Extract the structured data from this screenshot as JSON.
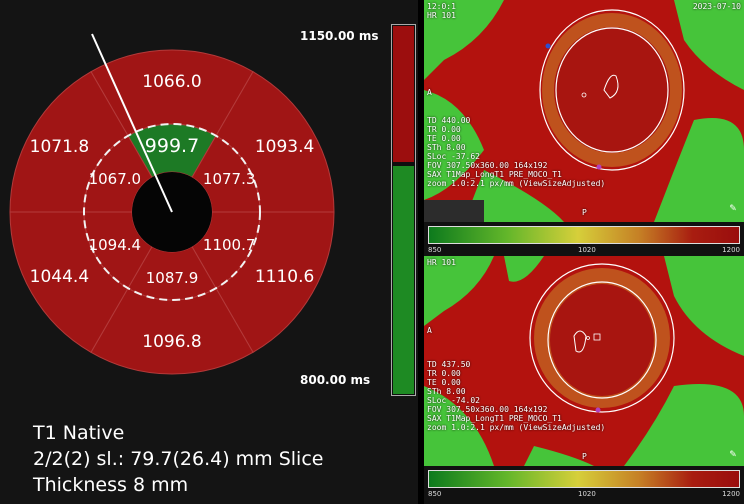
{
  "bullseye": {
    "outer_ring": [
      {
        "label": "1066.0",
        "color": "#a01515"
      },
      {
        "label": "1093.4",
        "color": "#a01515"
      },
      {
        "label": "1110.6",
        "color": "#a01515"
      },
      {
        "label": "1096.8",
        "color": "#a01515"
      },
      {
        "label": "1044.4",
        "color": "#a01515"
      },
      {
        "label": "1071.8",
        "color": "#a01515"
      }
    ],
    "inner_ring": [
      {
        "label": "999.7",
        "color": "#1d7a25"
      },
      {
        "label": "1077.3",
        "color": "#a01515"
      },
      {
        "label": "1100.7",
        "color": "#a01515"
      },
      {
        "label": "1087.9",
        "color": "#a01515"
      },
      {
        "label": "1094.4",
        "color": "#a01515"
      },
      {
        "label": "1067.0",
        "color": "#a01515"
      }
    ]
  },
  "colorbar": {
    "max_label": "1150.00 ms",
    "min_label": "800.00 ms",
    "top_color": "#9c0e0e",
    "bottom_color": "#1e8a23"
  },
  "caption": {
    "line1": "T1 Native",
    "line2": "2/2(2) sl.: 79.7(26.4) mm Slice",
    "line3": "Thickness 8 mm"
  },
  "panel_top": {
    "corner_tl_1": "12:0:1",
    "corner_tl_2": "HR 101",
    "corner_tr": "2023-07-10",
    "side_label": "A",
    "info": [
      "TD 440.00",
      "TR 0.00",
      "TE 0.00",
      "STh 8.00",
      "SLoc -37.62",
      "FOV 307.50x360.00 164x192",
      "SAX T1Map_LongT1 PRE_MOCO_T1",
      "zoom 1.0:2.1 px/mm (ViewSizeAdjusted)"
    ],
    "bottom_marker": "P"
  },
  "panel_bottom": {
    "corner_tl": "HR 101",
    "side_label": "A",
    "info": [
      "TD 437.50",
      "TR 0.00",
      "TE 0.00",
      "STh 8.00",
      "SLoc -74.02",
      "FOV 307.50x360.00 164x192",
      "SAX T1Map_LongT1 PRE_MOCO_T1",
      "zoom 1.0:2.1 px/mm (ViewSizeAdjusted)"
    ],
    "bottom_marker": "P"
  },
  "legend_top": {
    "ticks": [
      "850",
      "1020",
      "1200"
    ]
  },
  "legend_bottom": {
    "ticks": [
      "850",
      "1020",
      "1200"
    ]
  }
}
